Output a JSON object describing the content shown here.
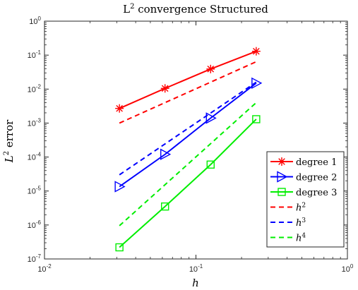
{
  "chart_data": {
    "type": "line",
    "title": {
      "prefix": "L",
      "sup": "2",
      "suffix": " convergence Structured"
    },
    "xlabel": "h",
    "ylabel": {
      "prefix": "L",
      "sup": "2",
      "suffix": " error"
    },
    "xscale": "log",
    "yscale": "log",
    "xlim": [
      0.01,
      1
    ],
    "ylim": [
      1e-07,
      1
    ],
    "x_ticks": [
      {
        "value": 0.01,
        "base": "10",
        "exp": "-2"
      },
      {
        "value": 0.1,
        "base": "10",
        "exp": "-1"
      },
      {
        "value": 1,
        "base": "10",
        "exp": "0"
      }
    ],
    "y_ticks": [
      {
        "value": 1e-07,
        "base": "10",
        "exp": "-7"
      },
      {
        "value": 1e-06,
        "base": "10",
        "exp": "-6"
      },
      {
        "value": 1e-05,
        "base": "10",
        "exp": "-5"
      },
      {
        "value": 0.0001,
        "base": "10",
        "exp": "-4"
      },
      {
        "value": 0.001,
        "base": "10",
        "exp": "-3"
      },
      {
        "value": 0.01,
        "base": "10",
        "exp": "-2"
      },
      {
        "value": 0.1,
        "base": "10",
        "exp": "-1"
      },
      {
        "value": 1,
        "base": "10",
        "exp": "0"
      }
    ],
    "grid": false,
    "legend_position": "bottom-right",
    "series": [
      {
        "name": "degree 1",
        "color": "#ff0000",
        "marker": "star",
        "dash": false,
        "x": [
          0.03125,
          0.0625,
          0.125,
          0.25
        ],
        "y": [
          0.0027,
          0.0105,
          0.039,
          0.13
        ]
      },
      {
        "name": "degree 2",
        "color": "#0000ff",
        "marker": "triangle-right",
        "dash": false,
        "x": [
          0.03125,
          0.0625,
          0.125,
          0.25
        ],
        "y": [
          1.35e-05,
          0.00012,
          0.0014,
          0.015
        ]
      },
      {
        "name": "degree 3",
        "color": "#00ee00",
        "marker": "square",
        "dash": false,
        "x": [
          0.03125,
          0.0625,
          0.125,
          0.25
        ],
        "y": [
          2.2e-07,
          3.5e-06,
          6e-05,
          0.0013
        ]
      },
      {
        "name": "h",
        "name_sup": "2",
        "color": "#ff0000",
        "marker": "none",
        "dash": true,
        "x": [
          0.03125,
          0.25
        ],
        "y": [
          0.001,
          0.064
        ]
      },
      {
        "name": "h",
        "name_sup": "3",
        "color": "#0000ff",
        "marker": "none",
        "dash": true,
        "x": [
          0.03125,
          0.25
        ],
        "y": [
          3e-05,
          0.016
        ]
      },
      {
        "name": "h",
        "name_sup": "4",
        "color": "#00ee00",
        "marker": "none",
        "dash": true,
        "x": [
          0.03125,
          0.25
        ],
        "y": [
          9.5e-07,
          0.004
        ]
      }
    ]
  }
}
